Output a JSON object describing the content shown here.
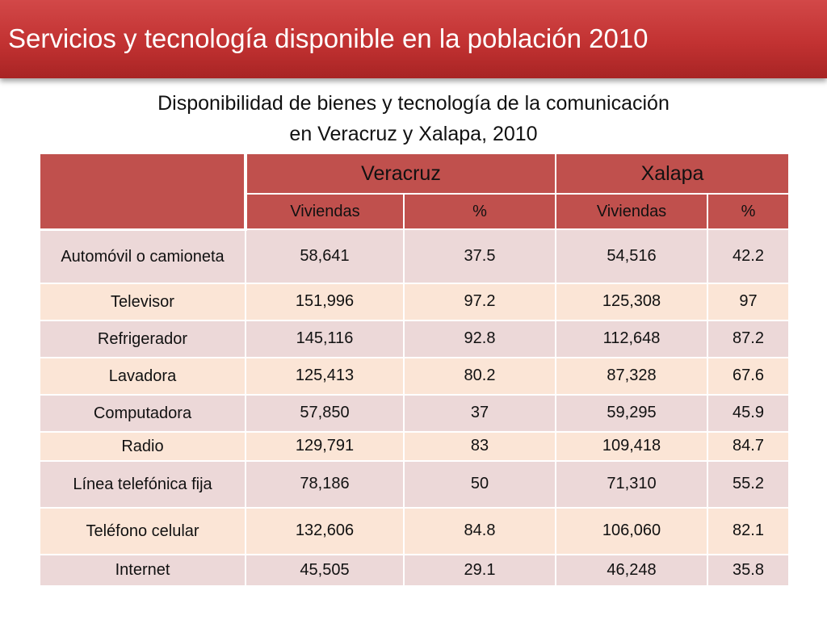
{
  "slide": {
    "title": "Servicios y tecnología disponible en la población  2010",
    "subtitle_line1": "Disponibilidad de bienes y tecnología de la comunicación",
    "subtitle_line2": "en Veracruz y Xalapa, 2010"
  },
  "colors": {
    "title_bar": "#c23232",
    "header_fill": "#c0504d",
    "row_odd": "#ecd8d8",
    "row_even": "#fbe5d6"
  },
  "table": {
    "cities": [
      "Veracruz",
      "Xalapa"
    ],
    "subheaders": [
      "Viviendas",
      "%",
      "Viviendas",
      "%"
    ],
    "rows": [
      {
        "label": "Automóvil o camioneta",
        "v_viv": "58,641",
        "v_pct": "37.5",
        "x_viv": "54,516",
        "x_pct": "42.2"
      },
      {
        "label": "Televisor",
        "v_viv": "151,996",
        "v_pct": "97.2",
        "x_viv": "125,308",
        "x_pct": "97"
      },
      {
        "label": "Refrigerador",
        "v_viv": "145,116",
        "v_pct": "92.8",
        "x_viv": "112,648",
        "x_pct": "87.2"
      },
      {
        "label": "Lavadora",
        "v_viv": "125,413",
        "v_pct": "80.2",
        "x_viv": "87,328",
        "x_pct": "67.6"
      },
      {
        "label": "Computadora",
        "v_viv": "57,850",
        "v_pct": "37",
        "x_viv": "59,295",
        "x_pct": "45.9"
      },
      {
        "label": "Radio",
        "v_viv": "129,791",
        "v_pct": "83",
        "x_viv": "109,418",
        "x_pct": "84.7"
      },
      {
        "label": "Línea telefónica fija",
        "v_viv": "78,186",
        "v_pct": "50",
        "x_viv": "71,310",
        "x_pct": "55.2"
      },
      {
        "label": "Teléfono celular",
        "v_viv": "132,606",
        "v_pct": "84.8",
        "x_viv": "106,060",
        "x_pct": "82.1"
      },
      {
        "label": "Internet",
        "v_viv": "45,505",
        "v_pct": "29.1",
        "x_viv": "46,248",
        "x_pct": "35.8"
      }
    ]
  }
}
